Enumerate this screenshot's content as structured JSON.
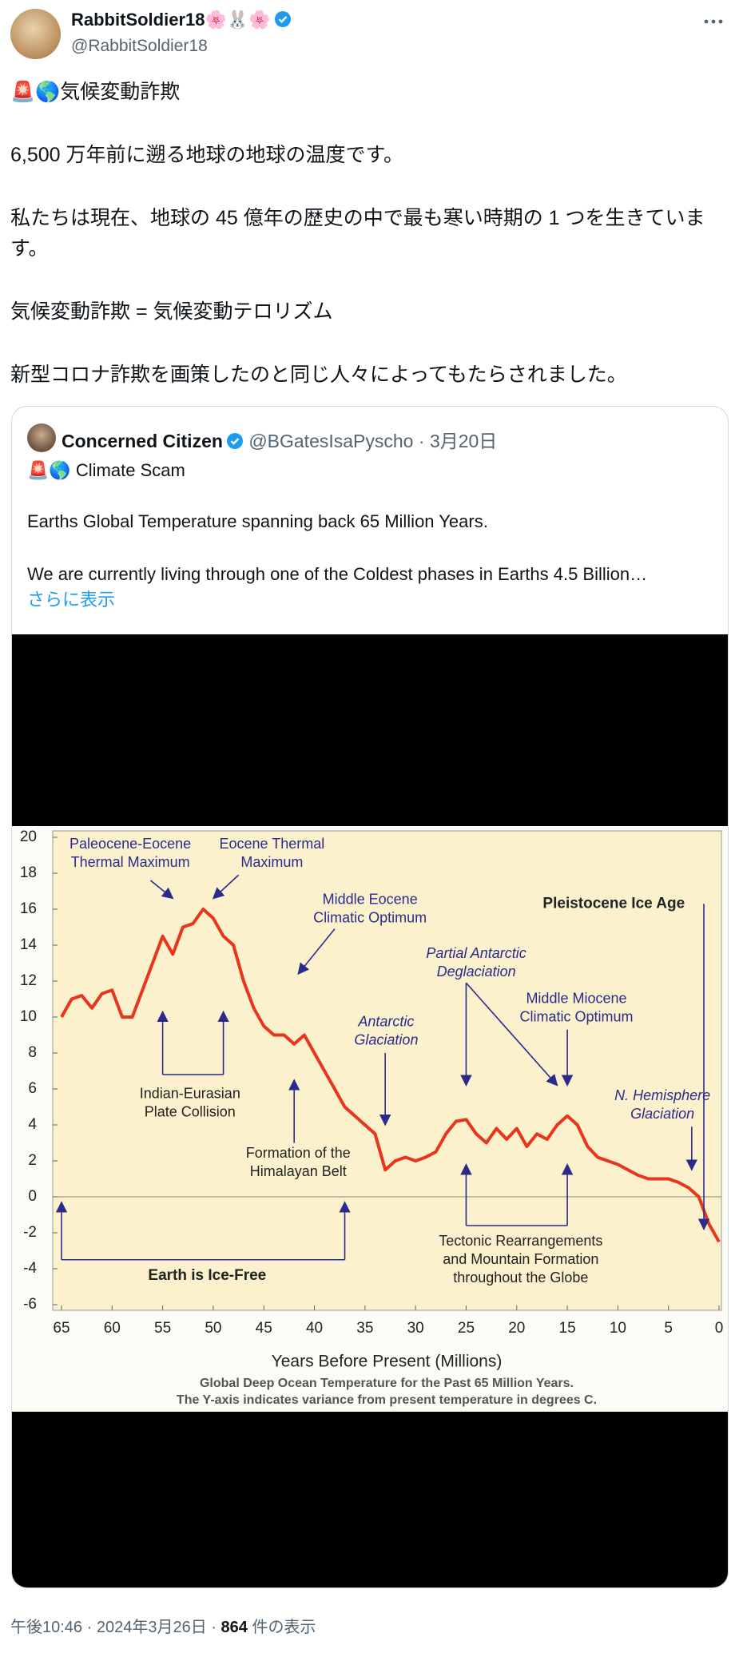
{
  "tweet": {
    "author_name": "RabbitSoldier18🌸🐰🌸",
    "handle": "@RabbitSoldier18",
    "paragraphs": [
      "🚨🌎気候変動詐欺",
      "6,500 万年前に遡る地球の地球の温度です。",
      "私たちは現在、地球の 45 億年の歴史の中で最も寒い時期の 1 つを生きています。",
      "気候変動詐欺 = 気候変動テロリズム",
      "新型コロナ詐欺を画策したのと同じ人々によってもたらされました。"
    ]
  },
  "quote": {
    "author_name": "Concerned Citizen",
    "handle": "@BGatesIsaPyscho",
    "separator": "·",
    "date": "3月20日",
    "paragraphs": [
      "🚨🌎 Climate Scam",
      "Earths Global Temperature spanning back 65 Million Years.",
      "We are currently living through one of the Coldest phases in Earths 4.5 Billion…"
    ],
    "show_more": "さらに表示"
  },
  "chart_data": {
    "type": "line",
    "x": [
      65,
      64,
      63,
      62,
      61,
      60,
      59,
      58,
      57,
      56,
      55,
      54,
      53,
      52,
      51,
      50,
      49,
      48,
      47,
      46,
      45,
      44,
      43,
      42,
      41,
      40,
      39,
      38,
      37,
      36,
      35,
      34,
      33,
      32,
      31,
      30,
      29,
      28,
      27,
      26,
      25,
      24,
      23,
      22,
      21,
      20,
      19,
      18,
      17,
      16,
      15,
      14,
      13,
      12,
      11,
      10,
      9,
      8,
      7,
      6,
      5,
      4,
      3,
      2,
      1,
      0
    ],
    "series": [
      {
        "color": "#e8351c",
        "values": [
          10,
          11,
          11.2,
          10.5,
          11.3,
          11.5,
          10,
          10,
          11.5,
          13,
          14.5,
          13.5,
          15,
          15.2,
          16,
          15.5,
          14.5,
          14,
          12,
          10.5,
          9.5,
          9,
          9,
          8.5,
          9,
          8,
          7,
          6,
          5,
          4.5,
          4,
          3.5,
          1.5,
          2,
          2.2,
          2,
          2.2,
          2.5,
          3.5,
          4.2,
          4.3,
          3.5,
          3,
          3.8,
          3.2,
          3.8,
          2.8,
          3.5,
          3.2,
          4,
          4.5,
          4,
          2.8,
          2.2,
          2,
          1.8,
          1.5,
          1.2,
          1,
          1,
          1,
          0.8,
          0.5,
          0,
          -1.5,
          -2.5
        ]
      }
    ],
    "xlim": [
      65,
      0
    ],
    "xticks": [
      65,
      60,
      55,
      50,
      45,
      40,
      35,
      30,
      25,
      20,
      15,
      10,
      5,
      0
    ],
    "ylim": [
      -6,
      20
    ],
    "yticks": [
      -6,
      -4,
      -2,
      0,
      2,
      4,
      6,
      8,
      10,
      12,
      14,
      16,
      18,
      20
    ],
    "x_label": "Years Before Present (Millions)",
    "caption": [
      "Global Deep Ocean Temperature for the Past 65 Million Years.",
      "The Y-axis indicates variance from present temperature in degrees C."
    ],
    "annotations": [
      {
        "lines": [
          "Paleocene-Eocene",
          "Thermal Maximum"
        ],
        "style": "normal"
      },
      {
        "lines": [
          "Eocene Thermal",
          "Maximum"
        ],
        "style": "normal"
      },
      {
        "lines": [
          "Middle Eocene",
          "Climatic Optimum"
        ],
        "style": "normal"
      },
      {
        "lines": [
          "Antarctic",
          "Glaciation"
        ],
        "style": "italic"
      },
      {
        "lines": [
          "Partial Antarctic",
          "Deglaciation"
        ],
        "style": "italic"
      },
      {
        "lines": [
          "Middle Miocene",
          "Climatic Optimum"
        ],
        "style": "normal"
      },
      {
        "lines": [
          "N. Hemisphere",
          "Glaciation"
        ],
        "style": "italic"
      },
      {
        "lines": [
          "Pleistocene Ice Age"
        ],
        "style": "bold"
      },
      {
        "lines": [
          "Indian-Eurasian",
          "Plate Collision"
        ],
        "style": "normal"
      },
      {
        "lines": [
          "Formation of the",
          "Himalayan Belt"
        ],
        "style": "normal"
      },
      {
        "lines": [
          "Tectonic Rearrangements",
          "and Mountain Formation",
          "throughout the Globe"
        ],
        "style": "normal"
      },
      {
        "lines": [
          "Earth is Ice-Free"
        ],
        "style": "bold"
      }
    ]
  },
  "footer": {
    "time": "午後10:46",
    "separator": "·",
    "date": "2024年3月26日",
    "views": "864",
    "views_label": "件の表示"
  }
}
